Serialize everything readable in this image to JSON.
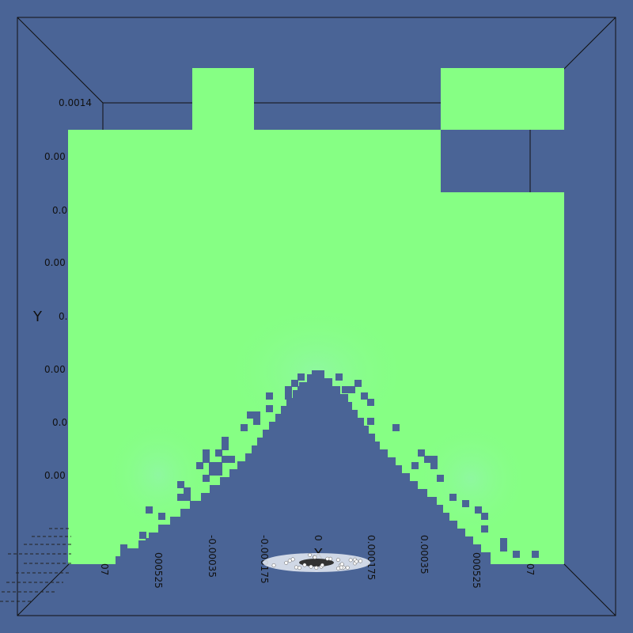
{
  "colors": {
    "background": "#4a6496",
    "field": "#86ff84",
    "field_glow": "#90f6a2",
    "box_line": "#111111"
  },
  "axes": {
    "y_title": "Y",
    "x_title": "X",
    "y_ticks": [
      "0.0014",
      "0.00",
      "0.0",
      "0.00",
      "0.0",
      "0.00",
      "0.0",
      "0.00"
    ],
    "x_ticks": [
      "07",
      "000525",
      "-0.00035",
      "-0.000175",
      "0",
      "0.000175",
      "0.00035",
      "000525",
      "07"
    ]
  }
}
